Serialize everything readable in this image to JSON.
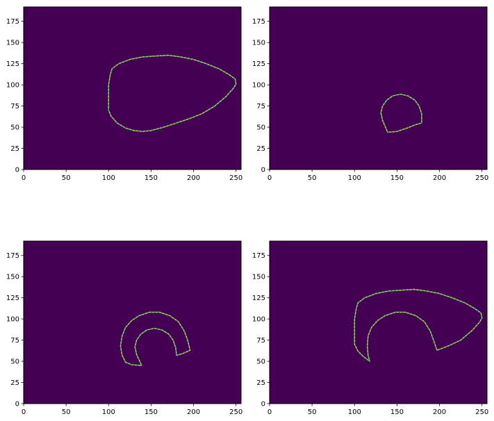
{
  "chart_data": [
    {
      "type": "image",
      "xlim": [
        0,
        256
      ],
      "ylim": [
        192,
        0
      ],
      "xticks": [
        0,
        50,
        100,
        150,
        200,
        250
      ],
      "yticks": [
        0,
        25,
        50,
        75,
        100,
        125,
        150,
        175
      ],
      "background_color": "#440154",
      "edge_color": "#fde725",
      "edge_inner_color": "#2ab07f",
      "contours": [
        [
          [
            100,
            70
          ],
          [
            103,
            63
          ],
          [
            110,
            55
          ],
          [
            120,
            49
          ],
          [
            130,
            46
          ],
          [
            140,
            45
          ],
          [
            150,
            46
          ],
          [
            165,
            50
          ],
          [
            180,
            55
          ],
          [
            195,
            60
          ],
          [
            210,
            66
          ],
          [
            225,
            75
          ],
          [
            238,
            86
          ],
          [
            247,
            96
          ],
          [
            250,
            101
          ],
          [
            249,
            107
          ],
          [
            242,
            112
          ],
          [
            230,
            119
          ],
          [
            215,
            125
          ],
          [
            200,
            130
          ],
          [
            185,
            133
          ],
          [
            170,
            135
          ],
          [
            155,
            134
          ],
          [
            140,
            133
          ],
          [
            125,
            130
          ],
          [
            112,
            125
          ],
          [
            104,
            119
          ],
          [
            102,
            112
          ],
          [
            100,
            100
          ],
          [
            100,
            85
          ],
          [
            100,
            70
          ]
        ]
      ]
    },
    {
      "type": "image",
      "xlim": [
        0,
        256
      ],
      "ylim": [
        192,
        0
      ],
      "xticks": [
        0,
        50,
        100,
        150,
        200,
        250
      ],
      "yticks": [
        0,
        25,
        50,
        75,
        100,
        125,
        150,
        175
      ],
      "background_color": "#440154",
      "edge_color": "#fde725",
      "edge_inner_color": "#2ab07f",
      "contours": [
        [
          [
            139,
            44
          ],
          [
            150,
            45
          ],
          [
            162,
            49
          ],
          [
            172,
            53
          ],
          [
            179,
            55
          ],
          [
            179,
            66
          ],
          [
            176,
            75
          ],
          [
            171,
            82
          ],
          [
            163,
            87
          ],
          [
            154,
            89
          ],
          [
            145,
            87
          ],
          [
            138,
            82
          ],
          [
            133,
            75
          ],
          [
            131,
            67
          ],
          [
            133,
            58
          ],
          [
            139,
            44
          ]
        ]
      ]
    },
    {
      "type": "image",
      "xlim": [
        0,
        256
      ],
      "ylim": [
        192,
        0
      ],
      "xticks": [
        0,
        50,
        100,
        150,
        200,
        250
      ],
      "yticks": [
        0,
        25,
        50,
        75,
        100,
        125,
        150,
        175
      ],
      "background_color": "#440154",
      "edge_color": "#fde725",
      "edge_inner_color": "#2ab07f",
      "contours": [
        [
          [
            139,
            45
          ],
          [
            127,
            46
          ],
          [
            120,
            49
          ],
          [
            116,
            57
          ],
          [
            114,
            68
          ],
          [
            116,
            80
          ],
          [
            120,
            90
          ],
          [
            127,
            98
          ],
          [
            136,
            104
          ],
          [
            148,
            108
          ],
          [
            160,
            108
          ],
          [
            172,
            104
          ],
          [
            182,
            97
          ],
          [
            189,
            86
          ],
          [
            193,
            75
          ],
          [
            196,
            63
          ],
          [
            187,
            59
          ],
          [
            180,
            57
          ],
          [
            179,
            66
          ],
          [
            176,
            75
          ],
          [
            171,
            82
          ],
          [
            163,
            87
          ],
          [
            154,
            89
          ],
          [
            145,
            87
          ],
          [
            138,
            82
          ],
          [
            133,
            75
          ],
          [
            131,
            67
          ],
          [
            133,
            58
          ],
          [
            139,
            45
          ]
        ]
      ]
    },
    {
      "type": "image",
      "xlim": [
        0,
        256
      ],
      "ylim": [
        192,
        0
      ],
      "xticks": [
        0,
        50,
        100,
        150,
        200,
        250
      ],
      "yticks": [
        0,
        25,
        50,
        75,
        100,
        125,
        150,
        175
      ],
      "background_color": "#440154",
      "edge_color": "#fde725",
      "edge_inner_color": "#2ab07f",
      "contours": [
        [
          [
            118,
            50
          ],
          [
            110,
            56
          ],
          [
            104,
            62
          ],
          [
            100,
            70
          ],
          [
            100,
            85
          ],
          [
            100,
            100
          ],
          [
            102,
            112
          ],
          [
            104,
            119
          ],
          [
            112,
            125
          ],
          [
            125,
            130
          ],
          [
            140,
            133
          ],
          [
            155,
            134
          ],
          [
            170,
            135
          ],
          [
            185,
            133
          ],
          [
            200,
            130
          ],
          [
            215,
            125
          ],
          [
            230,
            119
          ],
          [
            242,
            112
          ],
          [
            249,
            107
          ],
          [
            250,
            101
          ],
          [
            247,
            96
          ],
          [
            238,
            86
          ],
          [
            225,
            75
          ],
          [
            210,
            68
          ],
          [
            197,
            63
          ],
          [
            193,
            75
          ],
          [
            189,
            86
          ],
          [
            182,
            97
          ],
          [
            172,
            104
          ],
          [
            160,
            108
          ],
          [
            148,
            108
          ],
          [
            136,
            104
          ],
          [
            127,
            98
          ],
          [
            120,
            90
          ],
          [
            116,
            80
          ],
          [
            115,
            68
          ],
          [
            116,
            57
          ],
          [
            118,
            50
          ]
        ]
      ]
    }
  ]
}
